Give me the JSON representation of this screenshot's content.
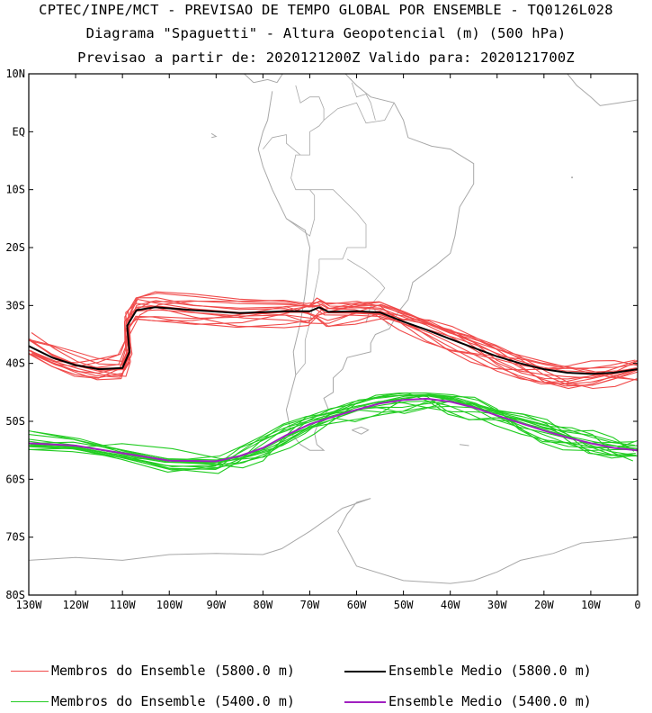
{
  "title": {
    "line1": "CPTEC/INPE/MCT - PREVISAO DE TEMPO GLOBAL POR ENSEMBLE - TQ0126L028",
    "line2": "Diagrama \"Spaguetti\" - Altura Geopotencial (m) (500 hPa)",
    "line3": "Previsao a partir de: 2020121200Z  Valido para: 2020121700Z"
  },
  "axes": {
    "lat_ticks": [
      "10N",
      "EQ",
      "10S",
      "20S",
      "30S",
      "40S",
      "50S",
      "60S",
      "70S",
      "80S"
    ],
    "lon_ticks": [
      "130W",
      "120W",
      "110W",
      "100W",
      "90W",
      "80W",
      "70W",
      "60W",
      "50W",
      "40W",
      "30W",
      "20W",
      "10W",
      "0"
    ],
    "lat_range": [
      10,
      -80
    ],
    "lon_range": [
      -130,
      0
    ]
  },
  "colors": {
    "member_5800": "#f04a4a",
    "mean_5800": "#000000",
    "member_5400": "#22cc22",
    "mean_5400": "#a020c0",
    "coast": "#a8a8a8"
  },
  "legend": {
    "items": [
      {
        "label": "Membros do Ensemble (5800.0 m)",
        "color": "#f04a4a"
      },
      {
        "label": "Ensemble Medio (5800.0 m)",
        "color": "#000000"
      },
      {
        "label": "Membros do Ensemble (5400.0 m)",
        "color": "#22cc22"
      },
      {
        "label": "Ensemble Medio (5400.0 m)",
        "color": "#a020c0"
      }
    ]
  },
  "chart_data": {
    "type": "line",
    "x_units": "longitude (deg)",
    "y_units": "latitude (deg)",
    "series": [
      {
        "name": "Ensemble Medio (5800.0 m)",
        "points": [
          [
            -130,
            -37
          ],
          [
            -125,
            -39
          ],
          [
            -120,
            -40.3
          ],
          [
            -115,
            -41
          ],
          [
            -110,
            -40.8
          ],
          [
            -108.5,
            -38
          ],
          [
            -109,
            -33.5
          ],
          [
            -107,
            -30.8
          ],
          [
            -103,
            -30.3
          ],
          [
            -95,
            -30.8
          ],
          [
            -85,
            -31.3
          ],
          [
            -75,
            -31
          ],
          [
            -70,
            -31
          ],
          [
            -68,
            -30.3
          ],
          [
            -66,
            -31.1
          ],
          [
            -60,
            -31
          ],
          [
            -55,
            -31.2
          ],
          [
            -50,
            -32.8
          ],
          [
            -45,
            -34.2
          ],
          [
            -40,
            -35.8
          ],
          [
            -35,
            -37.3
          ],
          [
            -30,
            -38.8
          ],
          [
            -25,
            -40
          ],
          [
            -20,
            -41
          ],
          [
            -15,
            -41.6
          ],
          [
            -10,
            -41.8
          ],
          [
            -5,
            -41.6
          ],
          [
            0,
            -41
          ]
        ]
      },
      {
        "name": "Ensemble Medio (5400.0 m)",
        "points": [
          [
            -130,
            -53.8
          ],
          [
            -120,
            -54.2
          ],
          [
            -110,
            -55.5
          ],
          [
            -100,
            -56.8
          ],
          [
            -90,
            -56.9
          ],
          [
            -85,
            -56
          ],
          [
            -80,
            -54.6
          ],
          [
            -75,
            -52.4
          ],
          [
            -70,
            -50.5
          ],
          [
            -65,
            -49.2
          ],
          [
            -60,
            -48
          ],
          [
            -55,
            -46.9
          ],
          [
            -50,
            -46.3
          ],
          [
            -45,
            -46.1
          ],
          [
            -40,
            -46.6
          ],
          [
            -35,
            -47.6
          ],
          [
            -30,
            -49
          ],
          [
            -25,
            -50.3
          ],
          [
            -20,
            -51.6
          ],
          [
            -15,
            -52.8
          ],
          [
            -10,
            -53.8
          ],
          [
            -5,
            -54.6
          ],
          [
            0,
            -55
          ]
        ]
      }
    ],
    "member_count_per_level": 15
  }
}
